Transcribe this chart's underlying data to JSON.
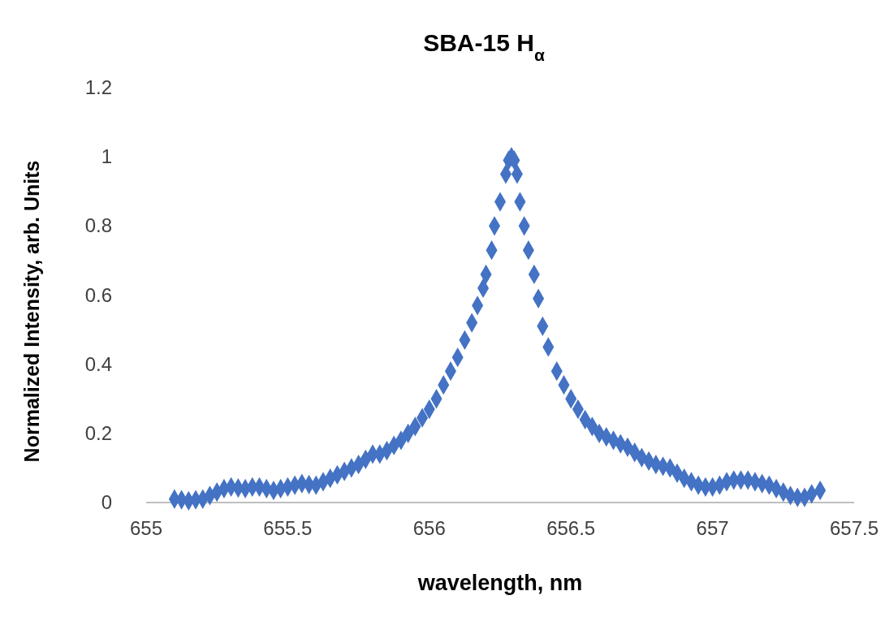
{
  "chart_data": {
    "type": "scatter",
    "title": "SBA-15 H$_{α}$",
    "xlabel": "wavelength, nm",
    "ylabel": "Normalized Intensity, arb. Units",
    "xlim": [
      655,
      657.5
    ],
    "xticks": [
      655,
      655.5,
      656,
      656.5,
      657,
      657.5
    ],
    "ylim": [
      0,
      1.2
    ],
    "yticks": [
      0,
      0.2,
      0.4,
      0.6,
      0.8,
      1,
      1.2
    ],
    "grid": false,
    "marker": "diamond",
    "series": [
      {
        "color": "#4472c4",
        "x": [
          655.1,
          655.125,
          655.15,
          655.175,
          655.2,
          655.225,
          655.25,
          655.275,
          655.3,
          655.325,
          655.35,
          655.375,
          655.4,
          655.425,
          655.45,
          655.475,
          655.5,
          655.525,
          655.55,
          655.575,
          655.6,
          655.625,
          655.65,
          655.675,
          655.7,
          655.725,
          655.75,
          655.775,
          655.8,
          655.825,
          655.85,
          655.875,
          655.9,
          655.925,
          655.95,
          655.975,
          656,
          656.025,
          656.05,
          656.075,
          656.1,
          656.125,
          656.15,
          656.17,
          656.19,
          656.2,
          656.22,
          656.23,
          656.25,
          656.27,
          656.28,
          656.29,
          656.3,
          656.31,
          656.32,
          656.335,
          656.35,
          656.37,
          656.385,
          656.4,
          656.42,
          656.45,
          656.475,
          656.5,
          656.525,
          656.55,
          656.575,
          656.6,
          656.625,
          656.65,
          656.675,
          656.7,
          656.725,
          656.75,
          656.775,
          656.8,
          656.825,
          656.85,
          656.875,
          656.9,
          656.925,
          656.95,
          656.975,
          657,
          657.025,
          657.05,
          657.075,
          657.1,
          657.125,
          657.15,
          657.175,
          657.2,
          657.225,
          657.25,
          657.275,
          657.3,
          657.325,
          657.35,
          657.38
        ],
        "values": [
          0.01,
          0.008,
          0.005,
          0.008,
          0.01,
          0.02,
          0.03,
          0.04,
          0.045,
          0.042,
          0.04,
          0.045,
          0.045,
          0.04,
          0.035,
          0.04,
          0.045,
          0.05,
          0.055,
          0.052,
          0.05,
          0.06,
          0.07,
          0.08,
          0.09,
          0.1,
          0.11,
          0.125,
          0.14,
          0.14,
          0.15,
          0.165,
          0.18,
          0.2,
          0.22,
          0.245,
          0.27,
          0.3,
          0.34,
          0.38,
          0.42,
          0.47,
          0.52,
          0.57,
          0.62,
          0.66,
          0.73,
          0.8,
          0.87,
          0.95,
          0.99,
          1.0,
          0.99,
          0.95,
          0.87,
          0.8,
          0.73,
          0.66,
          0.59,
          0.51,
          0.45,
          0.38,
          0.34,
          0.3,
          0.27,
          0.24,
          0.22,
          0.2,
          0.19,
          0.18,
          0.17,
          0.16,
          0.145,
          0.13,
          0.12,
          0.11,
          0.105,
          0.1,
          0.085,
          0.07,
          0.06,
          0.05,
          0.045,
          0.045,
          0.05,
          0.06,
          0.065,
          0.065,
          0.065,
          0.06,
          0.055,
          0.05,
          0.04,
          0.03,
          0.02,
          0.015,
          0.015,
          0.025,
          0.035
        ]
      }
    ]
  }
}
